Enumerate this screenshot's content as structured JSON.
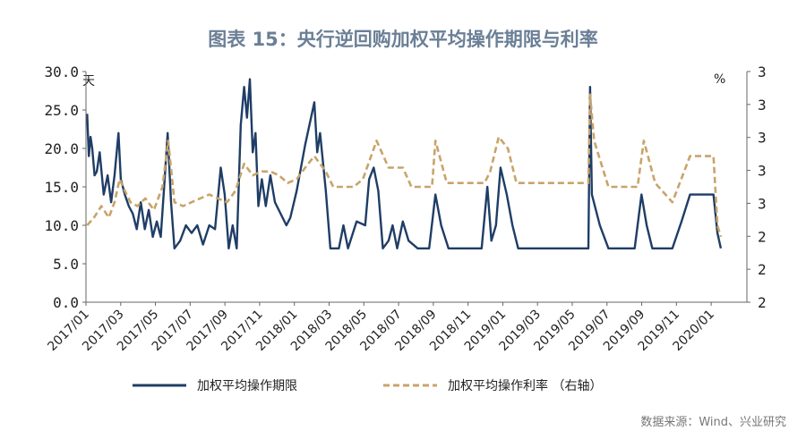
{
  "chart_data": {
    "type": "line",
    "title": "图表 15：央行逆回购加权平均操作期限与利率",
    "left_unit": "天",
    "right_unit": "%",
    "ylim_left": [
      0,
      30
    ],
    "left_ticks": [
      "0.0",
      "5.0",
      "10.0",
      "15.0",
      "20.0",
      "25.0",
      "30.0"
    ],
    "right_ticks": [
      "2",
      "2",
      "2",
      "3",
      "3",
      "3",
      "3",
      "3"
    ],
    "x_labels": [
      "2017/01",
      "2017/03",
      "2017/05",
      "2017/07",
      "2017/09",
      "2017/11",
      "2018/01",
      "2018/03",
      "2018/05",
      "2018/07",
      "2018/09",
      "2018/11",
      "2019/01",
      "2019/03",
      "2019/05",
      "2019/07",
      "2019/09",
      "2019/11",
      "2020/01"
    ],
    "grid": false,
    "legend_position": "bottom",
    "series": [
      {
        "name": "加权平均操作期限",
        "axis": "left",
        "color": "#1f3d66",
        "style": "solid",
        "points": [
          [
            "2017/01/03",
            24.5
          ],
          [
            "2017/01/06",
            19.0
          ],
          [
            "2017/01/09",
            21.5
          ],
          [
            "2017/01/12",
            20.0
          ],
          [
            "2017/01/16",
            16.5
          ],
          [
            "2017/01/20",
            17.0
          ],
          [
            "2017/01/25",
            19.5
          ],
          [
            "2017/02/01",
            14.0
          ],
          [
            "2017/02/08",
            16.5
          ],
          [
            "2017/02/14",
            13.0
          ],
          [
            "2017/02/20",
            16.5
          ],
          [
            "2017/02/27",
            22.0
          ],
          [
            "2017/03/03",
            16.0
          ],
          [
            "2017/03/10",
            14.0
          ],
          [
            "2017/03/17",
            12.5
          ],
          [
            "2017/03/24",
            11.5
          ],
          [
            "2017/03/31",
            9.5
          ],
          [
            "2017/04/07",
            13.0
          ],
          [
            "2017/04/14",
            9.5
          ],
          [
            "2017/04/21",
            12.0
          ],
          [
            "2017/04/28",
            8.5
          ],
          [
            "2017/05/05",
            10.5
          ],
          [
            "2017/05/12",
            8.5
          ],
          [
            "2017/05/18",
            15.0
          ],
          [
            "2017/05/24",
            22.0
          ],
          [
            "2017/05/30",
            13.0
          ],
          [
            "2017/06/05",
            7.0
          ],
          [
            "2017/06/15",
            8.0
          ],
          [
            "2017/06/25",
            10.0
          ],
          [
            "2017/07/05",
            9.0
          ],
          [
            "2017/07/15",
            10.0
          ],
          [
            "2017/07/25",
            7.5
          ],
          [
            "2017/08/05",
            10.0
          ],
          [
            "2017/08/15",
            9.5
          ],
          [
            "2017/08/25",
            17.5
          ],
          [
            "2017/09/01",
            14.0
          ],
          [
            "2017/09/08",
            7.0
          ],
          [
            "2017/09/15",
            10.0
          ],
          [
            "2017/09/22",
            7.0
          ],
          [
            "2017/09/29",
            23.0
          ],
          [
            "2017/10/05",
            28.0
          ],
          [
            "2017/10/10",
            24.0
          ],
          [
            "2017/10/15",
            29.0
          ],
          [
            "2017/10/20",
            19.5
          ],
          [
            "2017/10/25",
            22.0
          ],
          [
            "2017/10/30",
            12.5
          ],
          [
            "2017/11/05",
            16.0
          ],
          [
            "2017/11/12",
            12.5
          ],
          [
            "2017/11/20",
            16.5
          ],
          [
            "2017/11/28",
            13.0
          ],
          [
            "2017/12/08",
            11.5
          ],
          [
            "2017/12/18",
            10.0
          ],
          [
            "2017/12/25",
            11.0
          ],
          [
            "2018/01/05",
            14.5
          ],
          [
            "2018/01/20",
            20.5
          ],
          [
            "2018/02/05",
            26.0
          ],
          [
            "2018/02/10",
            19.5
          ],
          [
            "2018/02/15",
            22.0
          ],
          [
            "2018/02/25",
            14.5
          ],
          [
            "2018/03/05",
            7.0
          ],
          [
            "2018/03/20",
            7.0
          ],
          [
            "2018/03/28",
            10.0
          ],
          [
            "2018/04/05",
            7.0
          ],
          [
            "2018/04/20",
            10.5
          ],
          [
            "2018/05/05",
            10.0
          ],
          [
            "2018/05/12",
            16.0
          ],
          [
            "2018/05/20",
            17.5
          ],
          [
            "2018/05/28",
            14.5
          ],
          [
            "2018/06/05",
            7.0
          ],
          [
            "2018/06/15",
            8.0
          ],
          [
            "2018/06/22",
            10.0
          ],
          [
            "2018/06/30",
            7.0
          ],
          [
            "2018/07/10",
            10.5
          ],
          [
            "2018/07/20",
            8.0
          ],
          [
            "2018/08/05",
            7.0
          ],
          [
            "2018/08/25",
            7.0
          ],
          [
            "2018/09/05",
            14.0
          ],
          [
            "2018/09/15",
            10.0
          ],
          [
            "2018/09/28",
            7.0
          ],
          [
            "2018/10/15",
            7.0
          ],
          [
            "2018/11/05",
            7.0
          ],
          [
            "2018/11/25",
            7.0
          ],
          [
            "2018/12/05",
            15.0
          ],
          [
            "2018/12/12",
            8.0
          ],
          [
            "2018/12/20",
            10.0
          ],
          [
            "2018/12/28",
            17.5
          ],
          [
            "2019/01/08",
            14.0
          ],
          [
            "2019/01/18",
            10.0
          ],
          [
            "2019/01/28",
            7.0
          ],
          [
            "2019/03/15",
            7.0
          ],
          [
            "2019/04/25",
            7.0
          ],
          [
            "2019/05/31",
            7.0
          ],
          [
            "2019/06/03",
            28.0
          ],
          [
            "2019/06/06",
            14.0
          ],
          [
            "2019/06/20",
            10.0
          ],
          [
            "2019/07/05",
            7.0
          ],
          [
            "2019/08/20",
            7.0
          ],
          [
            "2019/09/01",
            14.0
          ],
          [
            "2019/09/10",
            10.0
          ],
          [
            "2019/09/20",
            7.0
          ],
          [
            "2019/10/25",
            7.0
          ],
          [
            "2019/11/10",
            10.5
          ],
          [
            "2019/11/25",
            14.0
          ],
          [
            "2019/12/20",
            14.0
          ],
          [
            "2020/01/05",
            14.0
          ],
          [
            "2020/01/12",
            9.0
          ],
          [
            "2020/01/18",
            7.0
          ]
        ]
      },
      {
        "name": "加权平均操作利率 （右轴）",
        "axis": "right",
        "color": "#c8a46a",
        "style": "dashed",
        "points": [
          [
            "2017/01/03",
            10.0
          ],
          [
            "2017/01/15",
            11.0
          ],
          [
            "2017/01/28",
            12.5
          ],
          [
            "2017/02/10",
            11.0
          ],
          [
            "2017/02/20",
            13.0
          ],
          [
            "2017/03/01",
            16.0
          ],
          [
            "2017/03/10",
            14.5
          ],
          [
            "2017/03/20",
            13.0
          ],
          [
            "2017/04/01",
            12.5
          ],
          [
            "2017/04/15",
            13.5
          ],
          [
            "2017/04/30",
            12.0
          ],
          [
            "2017/05/15",
            15.0
          ],
          [
            "2017/05/25",
            21.0
          ],
          [
            "2017/06/05",
            13.0
          ],
          [
            "2017/06/20",
            12.5
          ],
          [
            "2017/07/05",
            13.0
          ],
          [
            "2017/07/20",
            13.5
          ],
          [
            "2017/08/05",
            14.0
          ],
          [
            "2017/08/20",
            13.5
          ],
          [
            "2017/09/05",
            13.0
          ],
          [
            "2017/09/20",
            14.5
          ],
          [
            "2017/10/05",
            18.0
          ],
          [
            "2017/10/20",
            16.5
          ],
          [
            "2017/11/05",
            17.0
          ],
          [
            "2017/11/20",
            17.0
          ],
          [
            "2017/12/05",
            16.5
          ],
          [
            "2017/12/20",
            15.5
          ],
          [
            "2018/01/05",
            16.0
          ],
          [
            "2018/01/20",
            17.5
          ],
          [
            "2018/02/05",
            19.0
          ],
          [
            "2018/02/25",
            17.0
          ],
          [
            "2018/03/10",
            15.0
          ],
          [
            "2018/04/15",
            15.0
          ],
          [
            "2018/05/01",
            16.0
          ],
          [
            "2018/05/25",
            21.0
          ],
          [
            "2018/06/15",
            17.5
          ],
          [
            "2018/07/10",
            17.5
          ],
          [
            "2018/07/25",
            15.0
          ],
          [
            "2018/08/30",
            15.0
          ],
          [
            "2018/09/05",
            21.0
          ],
          [
            "2018/09/25",
            15.5
          ],
          [
            "2018/11/30",
            15.5
          ],
          [
            "2018/12/10",
            17.0
          ],
          [
            "2018/12/25",
            21.5
          ],
          [
            "2019/01/10",
            20.0
          ],
          [
            "2019/01/25",
            15.5
          ],
          [
            "2019/05/31",
            15.5
          ],
          [
            "2019/06/03",
            27.0
          ],
          [
            "2019/06/10",
            21.0
          ],
          [
            "2019/07/05",
            15.0
          ],
          [
            "2019/08/25",
            15.0
          ],
          [
            "2019/09/05",
            21.0
          ],
          [
            "2019/09/25",
            15.5
          ],
          [
            "2019/10/25",
            13.0
          ],
          [
            "2019/11/25",
            19.0
          ],
          [
            "2020/01/05",
            19.0
          ],
          [
            "2020/01/12",
            10.0
          ],
          [
            "2020/01/18",
            8.5
          ]
        ]
      }
    ],
    "source": "数据来源：Wind、兴业研究"
  }
}
